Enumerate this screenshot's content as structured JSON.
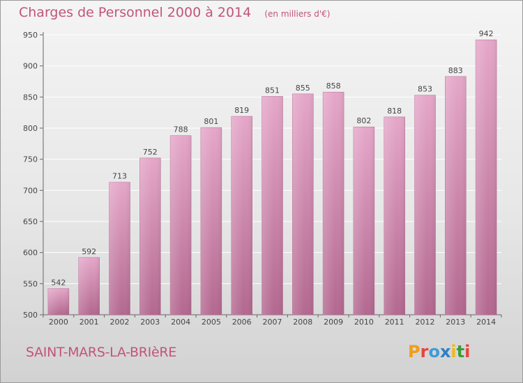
{
  "header": {
    "title": "Charges de Personnel 2000 à 2014",
    "unit": "(en milliers d'€)"
  },
  "footer": {
    "commune": "SAINT-MARS-LA-BRIèRE",
    "logo": "Proxiti",
    "logo_colors": [
      "#f39c1b",
      "#e8433f",
      "#3f9bd6",
      "#2f7fc4",
      "#f0b81a",
      "#3a9b3a",
      "#e8433f"
    ]
  },
  "colors": {
    "bar_top": "#e5a7c9",
    "bar_bottom": "#b3688f",
    "accent": "#c2547a",
    "grid": "#ffffff"
  },
  "chart_data": {
    "type": "bar",
    "categories": [
      "2000",
      "2001",
      "2002",
      "2003",
      "2004",
      "2005",
      "2006",
      "2007",
      "2008",
      "2009",
      "2010",
      "2011",
      "2012",
      "2013",
      "2014"
    ],
    "values": [
      542,
      592,
      713,
      752,
      788,
      801,
      819,
      851,
      855,
      858,
      802,
      818,
      853,
      883,
      942
    ],
    "ylim": [
      500,
      950
    ],
    "yticks": [
      500,
      550,
      600,
      650,
      700,
      750,
      800,
      850,
      900,
      950
    ],
    "grid": true,
    "data_labels": true
  }
}
